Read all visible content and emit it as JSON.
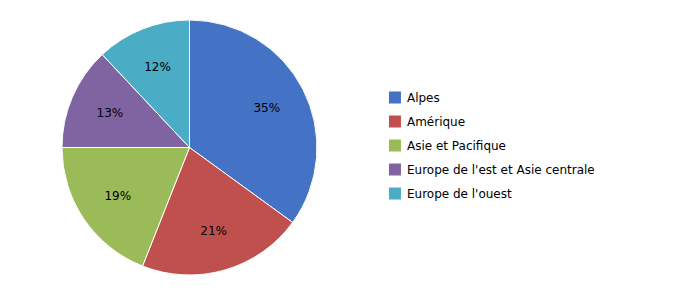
{
  "chart_data": {
    "type": "pie",
    "categories": [
      "Alpes",
      "Amérique",
      "Asie et Pacifique",
      "Europe de l'est et Asie centrale",
      "Europe de l'ouest"
    ],
    "values": [
      35,
      21,
      19,
      13,
      12
    ],
    "value_labels": [
      "35%",
      "21%",
      "19%",
      "13%",
      "12%"
    ],
    "colors": [
      "#4472C4",
      "#C0504D",
      "#9BBB59",
      "#8064A2",
      "#4BACC6"
    ],
    "data_labels": true,
    "legend": "right"
  }
}
